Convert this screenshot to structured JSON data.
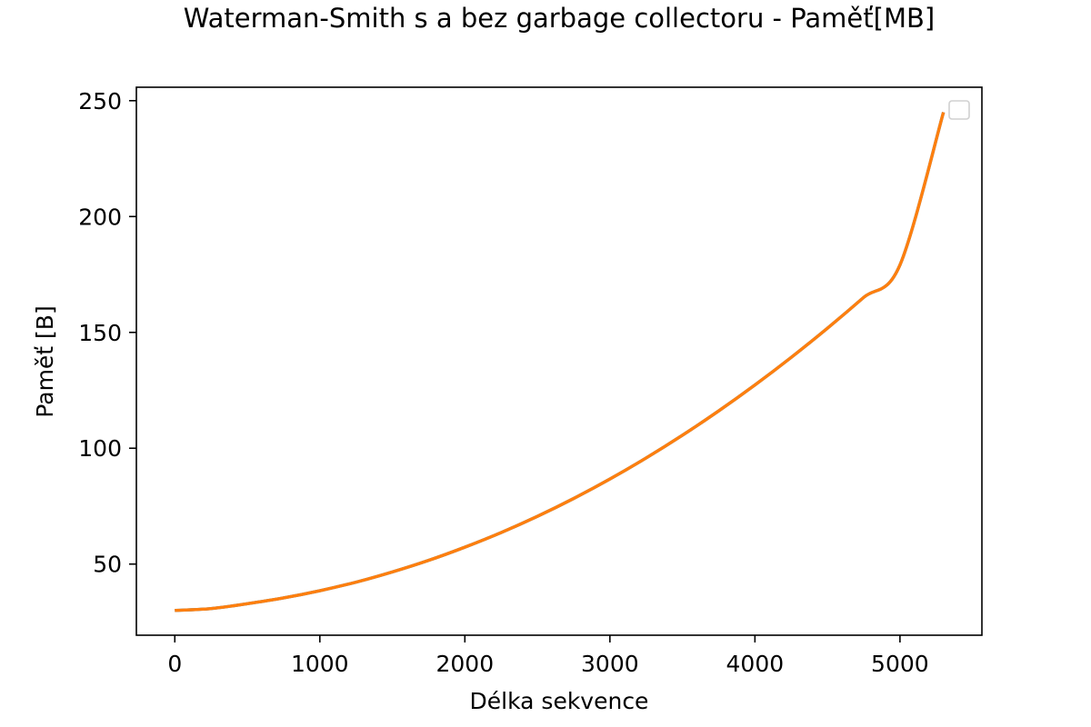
{
  "chart_data": {
    "type": "line",
    "title": "Waterman-Smith s a bez garbage collectoru - Paměť[MB]",
    "xlabel": "Délka sekvence",
    "ylabel": "Paměť [B]",
    "xlim": [
      -265,
      5565
    ],
    "ylim": [
      19.3,
      255.8
    ],
    "xticks": [
      0,
      1000,
      2000,
      3000,
      4000,
      5000
    ],
    "yticks": [
      50,
      100,
      150,
      200,
      250
    ],
    "grid": false,
    "legend": {
      "placement": "top-right",
      "entries": []
    },
    "series": [
      {
        "color": "#1f77b4",
        "x": [
          0,
          250,
          500,
          750,
          1000,
          1250,
          1500,
          1750,
          2000,
          2250,
          2500,
          2750,
          3000,
          3250,
          3500,
          3750,
          4000,
          4250,
          4500,
          4750,
          5000,
          5300
        ],
        "y": [
          30.0,
          30.8,
          32.9,
          35.4,
          38.5,
          42.2,
          46.6,
          51.6,
          57.3,
          63.6,
          70.6,
          78.3,
          86.7,
          95.8,
          105.6,
          116.1,
          127.3,
          139.2,
          151.8,
          165.1,
          179.1,
          245.0
        ]
      },
      {
        "color": "#ff7f0e",
        "x": [
          0,
          250,
          500,
          750,
          1000,
          1250,
          1500,
          1750,
          2000,
          2250,
          2500,
          2750,
          3000,
          3250,
          3500,
          3750,
          4000,
          4250,
          4500,
          4750,
          5000,
          5300
        ],
        "y": [
          30.0,
          30.8,
          32.9,
          35.4,
          38.5,
          42.2,
          46.6,
          51.6,
          57.3,
          63.6,
          70.6,
          78.3,
          86.7,
          95.8,
          105.6,
          116.1,
          127.3,
          139.2,
          151.8,
          165.1,
          179.1,
          245.0
        ]
      }
    ]
  }
}
